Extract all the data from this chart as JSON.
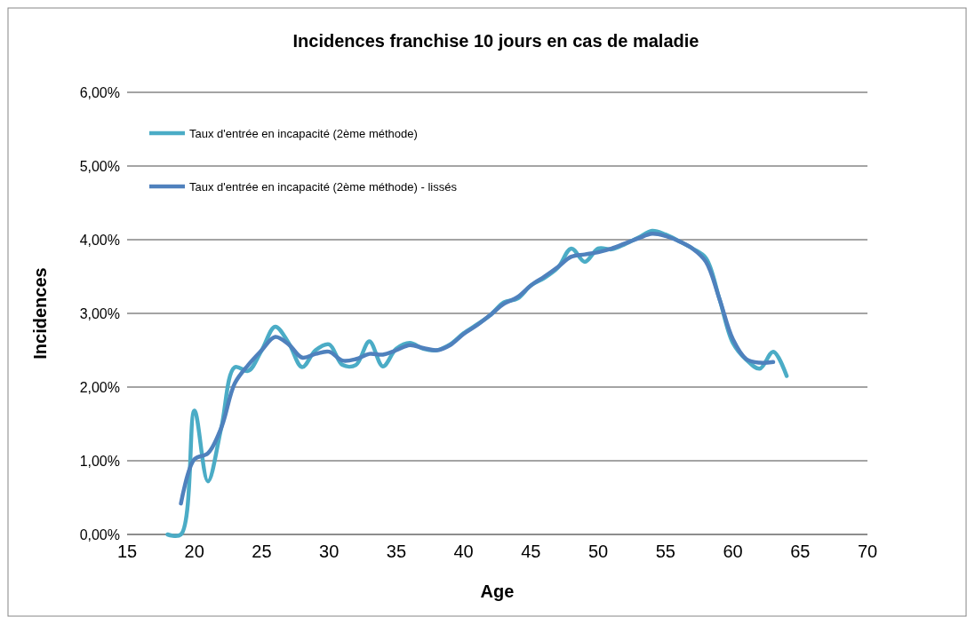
{
  "chart_data": {
    "type": "line",
    "title": "Incidences franchise 10 jours en cas de maladie",
    "xlabel": "Age",
    "ylabel": "Incidences",
    "xlim": [
      15,
      70
    ],
    "xticks": [
      15,
      20,
      25,
      30,
      35,
      40,
      45,
      50,
      55,
      60,
      65,
      70
    ],
    "ylim": [
      0,
      6
    ],
    "yticks": [
      {
        "value": 0,
        "label": "0,00%"
      },
      {
        "value": 1,
        "label": "1,00%"
      },
      {
        "value": 2,
        "label": "2,00%"
      },
      {
        "value": 3,
        "label": "3,00%"
      },
      {
        "value": 4,
        "label": "4,00%"
      },
      {
        "value": 5,
        "label": "5,00%"
      },
      {
        "value": 6,
        "label": "6,00%"
      }
    ],
    "grid": "y",
    "legend": "top left",
    "line_style": "solid",
    "marker": "none",
    "series": [
      {
        "name": "Taux d'entrée en incapacité (2ème méthode)",
        "color": "#4bacc6",
        "x": [
          18,
          19,
          20,
          21,
          22,
          23,
          24,
          25,
          26,
          27,
          28,
          29,
          30,
          31,
          32,
          33,
          34,
          35,
          36,
          37,
          38,
          39,
          40,
          41,
          42,
          43,
          44,
          45,
          46,
          47,
          48,
          49,
          50,
          51,
          52,
          53,
          54,
          55,
          56,
          57,
          58,
          59,
          60,
          61,
          62,
          63,
          64
        ],
        "values": [
          0,
          0,
          1.68,
          0.72,
          1.45,
          2.27,
          2.22,
          2.5,
          2.82,
          2.6,
          2.27,
          2.5,
          2.58,
          2.3,
          2.3,
          2.62,
          2.28,
          2.52,
          2.6,
          2.52,
          2.5,
          2.58,
          2.73,
          2.85,
          2.98,
          3.15,
          3.2,
          3.38,
          3.48,
          3.62,
          3.88,
          3.7,
          3.88,
          3.87,
          3.94,
          4.03,
          4.12,
          4.07,
          3.98,
          3.88,
          3.75,
          3.2,
          2.6,
          2.37,
          2.25,
          2.48,
          2.15
        ]
      },
      {
        "name": "Taux d'entrée en incapacité (2ème méthode) - lissés",
        "color": "#4f81bd",
        "x": [
          19,
          20,
          21,
          22,
          23,
          24,
          25,
          26,
          27,
          28,
          29,
          30,
          31,
          32,
          33,
          34,
          35,
          36,
          37,
          38,
          39,
          40,
          41,
          42,
          43,
          44,
          45,
          46,
          47,
          48,
          49,
          50,
          51,
          52,
          53,
          54,
          55,
          56,
          57,
          58,
          59,
          60,
          61,
          62,
          63
        ],
        "values": [
          0.42,
          1.02,
          1.1,
          1.45,
          2.05,
          2.3,
          2.5,
          2.68,
          2.58,
          2.4,
          2.45,
          2.48,
          2.36,
          2.38,
          2.45,
          2.44,
          2.5,
          2.57,
          2.53,
          2.5,
          2.57,
          2.72,
          2.84,
          2.98,
          3.13,
          3.22,
          3.38,
          3.5,
          3.63,
          3.77,
          3.8,
          3.83,
          3.88,
          3.95,
          4.02,
          4.08,
          4.05,
          3.98,
          3.88,
          3.7,
          3.2,
          2.65,
          2.38,
          2.33,
          2.34
        ]
      }
    ]
  }
}
